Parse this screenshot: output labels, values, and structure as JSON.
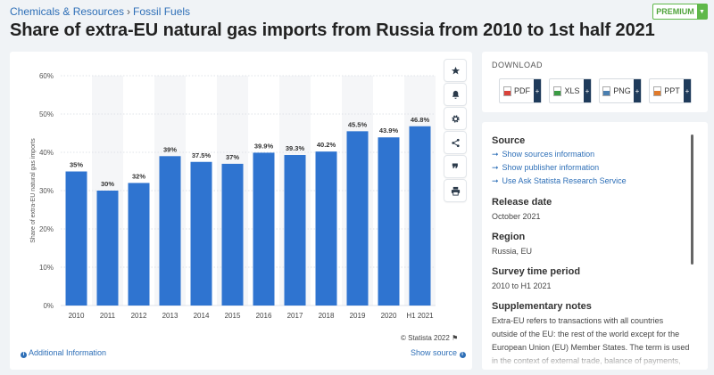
{
  "breadcrumb": {
    "part1": "Chemicals & Resources",
    "separator": "›",
    "part2": "Fossil Fuels"
  },
  "page_title": "Share of extra-EU natural gas imports from Russia from 2010 to 1st half 2021",
  "premium_label": "PREMIUM",
  "chart_data": {
    "type": "bar",
    "categories": [
      "2010",
      "2011",
      "2012",
      "2013",
      "2014",
      "2015",
      "2016",
      "2017",
      "2018",
      "2019",
      "2020",
      "H1 2021"
    ],
    "values": [
      35,
      30,
      32,
      39,
      37.5,
      37,
      39.9,
      39.3,
      40.2,
      45.5,
      43.9,
      46.8
    ],
    "data_labels": [
      "35%",
      "30%",
      "32%",
      "39%",
      "37.5%",
      "37%",
      "39.9%",
      "39.3%",
      "40.2%",
      "45.5%",
      "43.9%",
      "46.8%"
    ],
    "ylabel": "Share of extra-EU natural gas imports",
    "ylim": [
      0,
      60
    ],
    "yticks": [
      0,
      10,
      20,
      30,
      40,
      50,
      60
    ],
    "ytick_labels": [
      "0%",
      "10%",
      "20%",
      "30%",
      "40%",
      "50%",
      "60%"
    ],
    "grid": true,
    "colors": {
      "bar": "#2f74d0",
      "alt_band": "#f5f6f8",
      "grid": "#dfe3e8"
    }
  },
  "copyright": "© Statista 2022",
  "additional_info_label": "Additional Information",
  "show_source_label": "Show source",
  "toolbar_icons": [
    "star-icon",
    "bell-icon",
    "gear-icon",
    "share-icon",
    "quote-icon",
    "print-icon"
  ],
  "download": {
    "title": "DOWNLOAD",
    "buttons": [
      {
        "label": "PDF",
        "icon": "pdf-file-icon",
        "color": "#d9423a"
      },
      {
        "label": "XLS",
        "icon": "xls-file-icon",
        "color": "#3a9b43"
      },
      {
        "label": "PNG",
        "icon": "png-file-icon",
        "color": "#4a7fb0"
      },
      {
        "label": "PPT",
        "icon": "ppt-file-icon",
        "color": "#e07a2a"
      }
    ],
    "plus": "+"
  },
  "info": {
    "source_title": "Source",
    "source_links": [
      "Show sources information",
      "Show publisher information",
      "Use Ask Statista Research Service"
    ],
    "release_title": "Release date",
    "release_value": "October 2021",
    "region_title": "Region",
    "region_value": "Russia, EU",
    "survey_title": "Survey time period",
    "survey_value": "2010 to H1 2021",
    "notes_title": "Supplementary notes",
    "notes_text": "Extra-EU refers to transactions with all countries outside of the EU: the rest of the world except for the European Union (EU) Member States. The term is used in the context of external trade, balance of payments, foreign direct investment and"
  }
}
